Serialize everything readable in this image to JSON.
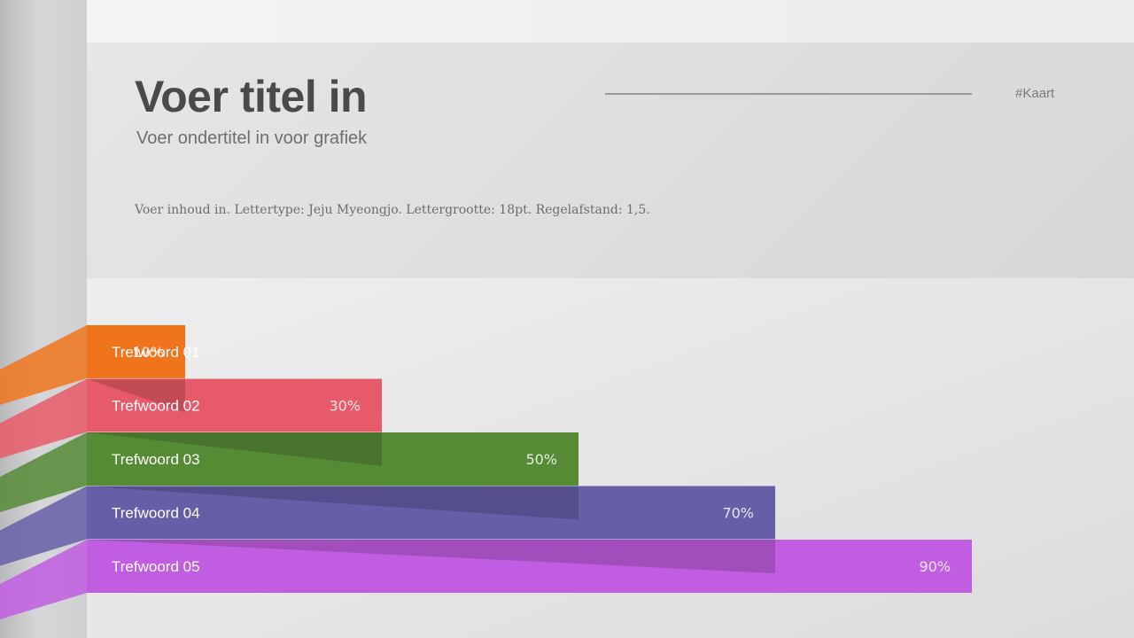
{
  "slide": {
    "title": "Voer titel in",
    "subtitle": "Voer ondertitel in voor grafiek",
    "body": "Voer inhoud in. Lettertype: Jeju Myeongjo. Lettergrootte: 18pt. Regelafstand: 1,5.",
    "tag": "#Kaart"
  },
  "chart_data": {
    "type": "bar",
    "orientation": "horizontal",
    "categories": [
      "Trefwoord 01",
      "Trefwoord 02",
      "Trefwoord 03",
      "Trefwoord 04",
      "Trefwoord 05"
    ],
    "values": [
      10,
      30,
      50,
      70,
      90
    ],
    "value_labels": [
      "10%",
      "30%",
      "50%",
      "70%",
      "90%"
    ],
    "unit": "%",
    "xlim": [
      0,
      100
    ],
    "colors": [
      "#ef741c",
      "#e75a69",
      "#568b36",
      "#655fa7",
      "#c05de0"
    ],
    "grid": false,
    "legend": "none"
  }
}
